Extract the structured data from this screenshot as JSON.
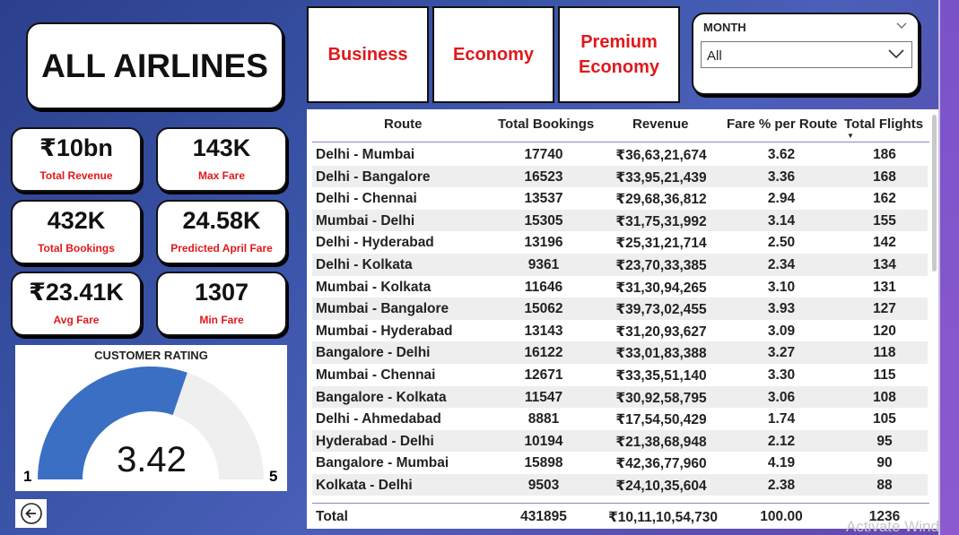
{
  "title": "ALL AIRLINES",
  "class_buttons": [
    "Business",
    "Economy",
    "Premium Economy"
  ],
  "month_filter": {
    "label": "MONTH",
    "value": "All"
  },
  "kpis": [
    {
      "value": "₹10bn",
      "label": "Total Revenue"
    },
    {
      "value": "143K",
      "label": "Max Fare"
    },
    {
      "value": "432K",
      "label": "Total Bookings"
    },
    {
      "value": "24.58K",
      "label": "Predicted April Fare"
    },
    {
      "value": "₹23.41K",
      "label": "Avg Fare"
    },
    {
      "value": "1307",
      "label": "Min Fare"
    }
  ],
  "rating": {
    "title": "CUSTOMER RATING",
    "value": "3.42",
    "min": "1",
    "max": "5",
    "numeric": 3.42,
    "range": [
      1,
      5
    ],
    "fill_color": "#3b6fc4",
    "track_color": "#efefef"
  },
  "table": {
    "columns": [
      "Route",
      "Total Bookings",
      "Revenue",
      "Fare % per Route",
      "Total Flights"
    ],
    "rows": [
      [
        "Delhi - Mumbai",
        "17740",
        "₹36,63,21,674",
        "3.62",
        "186"
      ],
      [
        "Delhi - Bangalore",
        "16523",
        "₹33,95,21,439",
        "3.36",
        "168"
      ],
      [
        "Delhi - Chennai",
        "13537",
        "₹29,68,36,812",
        "2.94",
        "162"
      ],
      [
        "Mumbai - Delhi",
        "15305",
        "₹31,75,31,992",
        "3.14",
        "155"
      ],
      [
        "Delhi - Hyderabad",
        "13196",
        "₹25,31,21,714",
        "2.50",
        "142"
      ],
      [
        "Delhi - Kolkata",
        "9361",
        "₹23,70,33,385",
        "2.34",
        "134"
      ],
      [
        "Mumbai - Kolkata",
        "11646",
        "₹31,30,94,265",
        "3.10",
        "131"
      ],
      [
        "Mumbai - Bangalore",
        "15062",
        "₹39,73,02,455",
        "3.93",
        "127"
      ],
      [
        "Mumbai - Hyderabad",
        "13143",
        "₹31,20,93,627",
        "3.09",
        "120"
      ],
      [
        "Bangalore - Delhi",
        "16122",
        "₹33,01,83,388",
        "3.27",
        "118"
      ],
      [
        "Mumbai - Chennai",
        "12671",
        "₹33,35,51,140",
        "3.30",
        "115"
      ],
      [
        "Bangalore - Kolkata",
        "11547",
        "₹30,92,58,795",
        "3.06",
        "108"
      ],
      [
        "Delhi - Ahmedabad",
        "8881",
        "₹17,54,50,429",
        "1.74",
        "105"
      ],
      [
        "Hyderabad - Delhi",
        "10194",
        "₹21,38,68,948",
        "2.12",
        "95"
      ],
      [
        "Bangalore - Mumbai",
        "15898",
        "₹42,36,77,960",
        "4.19",
        "90"
      ],
      [
        "Kolkata - Delhi",
        "9503",
        "₹24,10,35,604",
        "2.38",
        "88"
      ]
    ],
    "total": [
      "Total",
      "431895",
      "₹10,11,10,54,730",
      "100.00",
      "1236"
    ]
  },
  "watermark": "Activate Wind",
  "icons": {
    "back": "back-arrow-icon",
    "month_collapse": "chevron-down-icon",
    "month_dropdown": "chevron-down-icon",
    "sort": "sort-desc-icon"
  }
}
